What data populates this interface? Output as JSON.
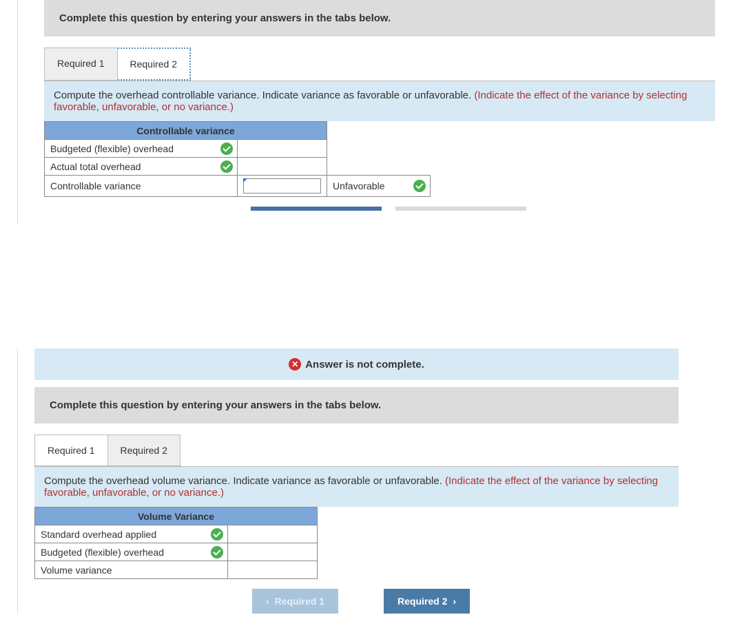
{
  "section1": {
    "instruction": "Complete this question by entering your answers in the tabs below.",
    "tabs": {
      "required1": "Required 1",
      "required2": "Required 2"
    },
    "prompt_main": "Compute the overhead controllable variance. Indicate variance as favorable or unfavorable. ",
    "prompt_hint": "(Indicate the effect of the variance by selecting favorable, unfavorable, or no variance.)",
    "table": {
      "header": "Controllable variance",
      "rows": {
        "r1": "Budgeted (flexible) overhead",
        "r2": "Actual total overhead",
        "r3": "Controllable variance"
      },
      "result_value": "Unfavorable"
    },
    "colors": {
      "header_bg": "#7da7d9",
      "prompt_bg": "#d6e9f5",
      "instruction_bg": "#dcdcdc"
    }
  },
  "section2": {
    "alert": "Answer is not complete.",
    "instruction": "Complete this question by entering your answers in the tabs below.",
    "tabs": {
      "required1": "Required 1",
      "required2": "Required 2"
    },
    "prompt_main": "Compute the overhead volume variance. Indicate variance as favorable or unfavorable. ",
    "prompt_hint": "(Indicate the effect of the variance by selecting favorable, unfavorable, or no variance.)",
    "table": {
      "header": "Volume Variance",
      "rows": {
        "r1": "Standard overhead applied",
        "r2": "Budgeted (flexible) overhead",
        "r3": "Volume variance"
      }
    },
    "nav": {
      "prev": "Required 1",
      "next": "Required 2"
    }
  }
}
